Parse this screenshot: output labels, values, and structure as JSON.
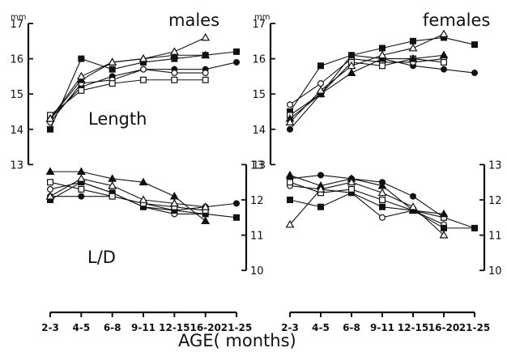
{
  "figure": {
    "xlabel": "AGE( months)",
    "axis_unit": "mm",
    "x_ticks": [
      "2-3",
      "4-5",
      "6-8",
      "9-11",
      "12-15",
      "16-20",
      "21-25"
    ],
    "left_axis_ticks": [
      "17",
      "16",
      "15",
      "14",
      "13"
    ],
    "right_axis_ticks": [
      "13",
      "12",
      "11",
      "10"
    ]
  },
  "chart_data": [
    {
      "type": "line",
      "title": "males",
      "xlabel": "AGE( months)",
      "x": [
        "2-3",
        "4-5",
        "6-8",
        "9-11",
        "12-15",
        "16-20",
        "21-25"
      ],
      "marker_legend": [
        "open-circle",
        "filled-circle",
        "open-square",
        "filled-square",
        "open-triangle",
        "filled-triangle"
      ],
      "panels": [
        {
          "label": "Length",
          "ylabel": "mm",
          "ylim": [
            13,
            17
          ],
          "series": [
            {
              "marker": "filled-circle",
              "values": [
                14.3,
                15.2,
                15.5,
                15.7,
                15.7,
                15.7,
                15.9
              ]
            },
            {
              "marker": "open-circle",
              "values": [
                14.2,
                15.3,
                15.4,
                15.7,
                15.6,
                15.6,
                null
              ]
            },
            {
              "marker": "filled-square",
              "values": [
                14.0,
                16.0,
                15.7,
                15.9,
                16.0,
                16.1,
                16.2
              ]
            },
            {
              "marker": "open-square",
              "values": [
                14.4,
                15.1,
                15.3,
                15.4,
                15.4,
                15.4,
                null
              ]
            },
            {
              "marker": "filled-triangle",
              "values": [
                14.3,
                15.4,
                15.9,
                16.0,
                16.1,
                16.1,
                null
              ]
            },
            {
              "marker": "open-triangle",
              "values": [
                14.3,
                15.5,
                15.9,
                16.0,
                16.2,
                16.6,
                null
              ]
            }
          ]
        },
        {
          "label": "L/D",
          "ylabel": "",
          "ylim": [
            10,
            13
          ],
          "series": [
            {
              "marker": "filled-circle",
              "values": [
                12.1,
                12.1,
                12.1,
                11.9,
                11.7,
                11.8,
                11.9
              ]
            },
            {
              "marker": "open-circle",
              "values": [
                12.3,
                12.5,
                12.2,
                11.8,
                11.6,
                11.6,
                null
              ]
            },
            {
              "marker": "filled-square",
              "values": [
                12.0,
                12.5,
                12.2,
                11.8,
                11.7,
                11.6,
                11.5
              ]
            },
            {
              "marker": "open-square",
              "values": [
                12.5,
                12.3,
                12.1,
                11.9,
                11.8,
                11.7,
                null
              ]
            },
            {
              "marker": "filled-triangle",
              "values": [
                12.8,
                12.8,
                12.6,
                12.5,
                12.1,
                11.4,
                null
              ]
            },
            {
              "marker": "open-triangle",
              "values": [
                12.1,
                12.6,
                12.4,
                12.0,
                11.9,
                11.8,
                null
              ]
            }
          ]
        }
      ]
    },
    {
      "type": "line",
      "title": "females",
      "xlabel": "AGE( months)",
      "x": [
        "2-3",
        "4-5",
        "6-8",
        "9-11",
        "12-15",
        "16-20",
        "21-25"
      ],
      "marker_legend": [
        "open-circle",
        "filled-circle",
        "open-square",
        "filled-square",
        "open-triangle",
        "filled-triangle"
      ],
      "panels": [
        {
          "label": "",
          "ylabel": "mm",
          "ylim": [
            13,
            17
          ],
          "series": [
            {
              "marker": "filled-circle",
              "values": [
                14.0,
                15.0,
                16.1,
                16.0,
                15.8,
                15.7,
                15.6
              ]
            },
            {
              "marker": "open-circle",
              "values": [
                14.7,
                15.3,
                16.0,
                15.9,
                15.9,
                16.0,
                null
              ]
            },
            {
              "marker": "filled-square",
              "values": [
                14.5,
                15.8,
                16.1,
                16.3,
                16.5,
                16.6,
                16.4
              ]
            },
            {
              "marker": "open-square",
              "values": [
                14.4,
                15.0,
                15.9,
                15.8,
                16.0,
                15.9,
                null
              ]
            },
            {
              "marker": "filled-triangle",
              "values": [
                14.3,
                15.0,
                15.6,
                16.0,
                16.0,
                16.1,
                null
              ]
            },
            {
              "marker": "open-triangle",
              "values": [
                14.2,
                15.1,
                15.8,
                16.1,
                16.3,
                16.7,
                null
              ]
            }
          ]
        },
        {
          "label": "",
          "ylabel": "",
          "ylim": [
            10,
            13
          ],
          "series": [
            {
              "marker": "filled-circle",
              "values": [
                12.6,
                12.7,
                12.6,
                12.5,
                12.1,
                11.5,
                11.2
              ]
            },
            {
              "marker": "open-circle",
              "values": [
                12.4,
                12.3,
                12.2,
                11.5,
                11.7,
                11.3,
                null
              ]
            },
            {
              "marker": "filled-square",
              "values": [
                12.0,
                11.8,
                12.2,
                11.8,
                11.7,
                11.2,
                11.2
              ]
            },
            {
              "marker": "open-square",
              "values": [
                12.5,
                12.2,
                12.3,
                12.0,
                11.7,
                11.5,
                null
              ]
            },
            {
              "marker": "filled-triangle",
              "values": [
                12.7,
                12.4,
                12.6,
                12.4,
                11.7,
                11.6,
                null
              ]
            },
            {
              "marker": "open-triangle",
              "values": [
                11.3,
                12.3,
                12.5,
                12.2,
                11.8,
                11.0,
                null
              ]
            }
          ]
        }
      ]
    }
  ]
}
